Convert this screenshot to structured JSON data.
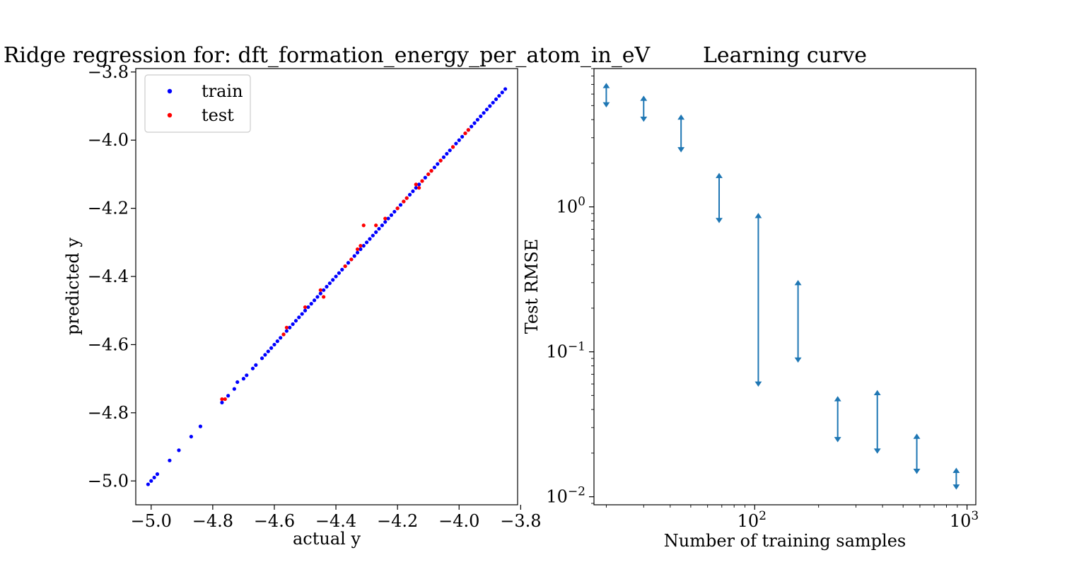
{
  "chart_data": [
    {
      "type": "scatter",
      "title": "Ridge regression for: dft_formation_energy_per_atom_in_eV",
      "xlabel": "actual y",
      "ylabel": "predicted y",
      "xlim": [
        -5.05,
        -3.81
      ],
      "ylim": [
        -5.07,
        -3.79
      ],
      "xticks": [
        -5.0,
        -4.8,
        -4.6,
        -4.4,
        -4.2,
        -4.0,
        -3.8
      ],
      "yticks": [
        -5.0,
        -4.8,
        -4.6,
        -4.4,
        -4.2,
        -4.0,
        -3.8
      ],
      "xtick_labels": [
        "−5.0",
        "−4.8",
        "−4.6",
        "−4.4",
        "−4.2",
        "−4.0",
        "−3.8"
      ],
      "ytick_labels": [
        "−5.0",
        "−4.8",
        "−4.6",
        "−4.4",
        "−4.2",
        "−4.0",
        "−3.8"
      ],
      "legend_position": "top-left",
      "grid": false,
      "series": [
        {
          "name": "train",
          "color": "#0000ff",
          "points": [
            [
              -5.01,
              -5.01
            ],
            [
              -5.0,
              -5.0
            ],
            [
              -4.99,
              -4.99
            ],
            [
              -4.98,
              -4.98
            ],
            [
              -4.94,
              -4.94
            ],
            [
              -4.91,
              -4.91
            ],
            [
              -4.87,
              -4.87
            ],
            [
              -4.84,
              -4.84
            ],
            [
              -4.77,
              -4.77
            ],
            [
              -4.75,
              -4.75
            ],
            [
              -4.73,
              -4.73
            ],
            [
              -4.72,
              -4.71
            ],
            [
              -4.7,
              -4.7
            ],
            [
              -4.69,
              -4.69
            ],
            [
              -4.67,
              -4.67
            ],
            [
              -4.66,
              -4.66
            ],
            [
              -4.64,
              -4.64
            ],
            [
              -4.63,
              -4.63
            ],
            [
              -4.62,
              -4.62
            ],
            [
              -4.61,
              -4.61
            ],
            [
              -4.6,
              -4.6
            ],
            [
              -4.59,
              -4.59
            ],
            [
              -4.58,
              -4.58
            ],
            [
              -4.57,
              -4.57
            ],
            [
              -4.56,
              -4.56
            ],
            [
              -4.55,
              -4.55
            ],
            [
              -4.54,
              -4.54
            ],
            [
              -4.53,
              -4.53
            ],
            [
              -4.52,
              -4.52
            ],
            [
              -4.51,
              -4.51
            ],
            [
              -4.5,
              -4.5
            ],
            [
              -4.49,
              -4.49
            ],
            [
              -4.48,
              -4.48
            ],
            [
              -4.47,
              -4.47
            ],
            [
              -4.46,
              -4.46
            ],
            [
              -4.45,
              -4.45
            ],
            [
              -4.44,
              -4.44
            ],
            [
              -4.43,
              -4.43
            ],
            [
              -4.42,
              -4.42
            ],
            [
              -4.41,
              -4.41
            ],
            [
              -4.4,
              -4.4
            ],
            [
              -4.39,
              -4.39
            ],
            [
              -4.38,
              -4.38
            ],
            [
              -4.37,
              -4.37
            ],
            [
              -4.36,
              -4.36
            ],
            [
              -4.35,
              -4.35
            ],
            [
              -4.34,
              -4.34
            ],
            [
              -4.33,
              -4.33
            ],
            [
              -4.32,
              -4.32
            ],
            [
              -4.31,
              -4.31
            ],
            [
              -4.3,
              -4.3
            ],
            [
              -4.29,
              -4.29
            ],
            [
              -4.28,
              -4.28
            ],
            [
              -4.27,
              -4.27
            ],
            [
              -4.26,
              -4.26
            ],
            [
              -4.25,
              -4.25
            ],
            [
              -4.24,
              -4.24
            ],
            [
              -4.23,
              -4.23
            ],
            [
              -4.22,
              -4.22
            ],
            [
              -4.21,
              -4.21
            ],
            [
              -4.2,
              -4.2
            ],
            [
              -4.19,
              -4.19
            ],
            [
              -4.18,
              -4.18
            ],
            [
              -4.17,
              -4.17
            ],
            [
              -4.16,
              -4.16
            ],
            [
              -4.15,
              -4.15
            ],
            [
              -4.14,
              -4.14
            ],
            [
              -4.13,
              -4.13
            ],
            [
              -4.12,
              -4.12
            ],
            [
              -4.11,
              -4.11
            ],
            [
              -4.1,
              -4.1
            ],
            [
              -4.09,
              -4.09
            ],
            [
              -4.08,
              -4.08
            ],
            [
              -4.07,
              -4.07
            ],
            [
              -4.06,
              -4.06
            ],
            [
              -4.05,
              -4.05
            ],
            [
              -4.04,
              -4.04
            ],
            [
              -4.03,
              -4.03
            ],
            [
              -4.02,
              -4.02
            ],
            [
              -4.01,
              -4.01
            ],
            [
              -4.0,
              -4.0
            ],
            [
              -3.99,
              -3.99
            ],
            [
              -3.98,
              -3.98
            ],
            [
              -3.97,
              -3.97
            ],
            [
              -3.96,
              -3.96
            ],
            [
              -3.95,
              -3.95
            ],
            [
              -3.94,
              -3.94
            ],
            [
              -3.93,
              -3.93
            ],
            [
              -3.92,
              -3.92
            ],
            [
              -3.91,
              -3.91
            ],
            [
              -3.9,
              -3.9
            ],
            [
              -3.89,
              -3.89
            ],
            [
              -3.88,
              -3.88
            ],
            [
              -3.87,
              -3.87
            ],
            [
              -3.86,
              -3.86
            ],
            [
              -3.85,
              -3.85
            ]
          ]
        },
        {
          "name": "test",
          "color": "#ff0000",
          "points": [
            [
              -4.77,
              -4.76
            ],
            [
              -4.76,
              -4.76
            ],
            [
              -4.57,
              -4.57
            ],
            [
              -4.56,
              -4.55
            ],
            [
              -4.5,
              -4.49
            ],
            [
              -4.45,
              -4.44
            ],
            [
              -4.44,
              -4.46
            ],
            [
              -4.37,
              -4.37
            ],
            [
              -4.35,
              -4.35
            ],
            [
              -4.33,
              -4.32
            ],
            [
              -4.32,
              -4.31
            ],
            [
              -4.31,
              -4.25
            ],
            [
              -4.27,
              -4.25
            ],
            [
              -4.24,
              -4.23
            ],
            [
              -4.2,
              -4.2
            ],
            [
              -4.18,
              -4.18
            ],
            [
              -4.17,
              -4.17
            ],
            [
              -4.14,
              -4.13
            ],
            [
              -4.13,
              -4.14
            ],
            [
              -4.12,
              -4.12
            ],
            [
              -4.1,
              -4.1
            ],
            [
              -4.09,
              -4.09
            ],
            [
              -4.06,
              -4.06
            ],
            [
              -4.02,
              -4.02
            ],
            [
              -3.98,
              -3.98
            ],
            [
              -3.97,
              -3.97
            ]
          ]
        }
      ]
    },
    {
      "type": "errorbar",
      "title": "Learning curve",
      "xlabel": "Number of training samples",
      "ylabel": "Test RMSE",
      "xscale": "log",
      "yscale": "log",
      "xlim": [
        17.5,
        1100
      ],
      "ylim": [
        0.0088,
        9.0
      ],
      "xticks": [
        100,
        1000
      ],
      "yticks": [
        0.01,
        0.1,
        1
      ],
      "xtick_labels": [
        [
          "10",
          "2"
        ],
        [
          "10",
          "3"
        ]
      ],
      "ytick_labels": [
        [
          "10",
          "−2"
        ],
        [
          "10",
          "−1"
        ],
        [
          "10",
          "0"
        ]
      ],
      "color": "#1f77b4",
      "grid": false,
      "intervals": [
        {
          "x": 20,
          "low": 4.9,
          "high": 7.1
        },
        {
          "x": 30,
          "low": 3.9,
          "high": 5.8
        },
        {
          "x": 45,
          "low": 2.4,
          "high": 4.3
        },
        {
          "x": 68,
          "low": 0.78,
          "high": 1.7
        },
        {
          "x": 104,
          "low": 0.058,
          "high": 0.9
        },
        {
          "x": 160,
          "low": 0.085,
          "high": 0.31
        },
        {
          "x": 246,
          "low": 0.024,
          "high": 0.049
        },
        {
          "x": 378,
          "low": 0.02,
          "high": 0.054
        },
        {
          "x": 580,
          "low": 0.0145,
          "high": 0.027
        },
        {
          "x": 890,
          "low": 0.0113,
          "high": 0.0157
        }
      ]
    }
  ]
}
